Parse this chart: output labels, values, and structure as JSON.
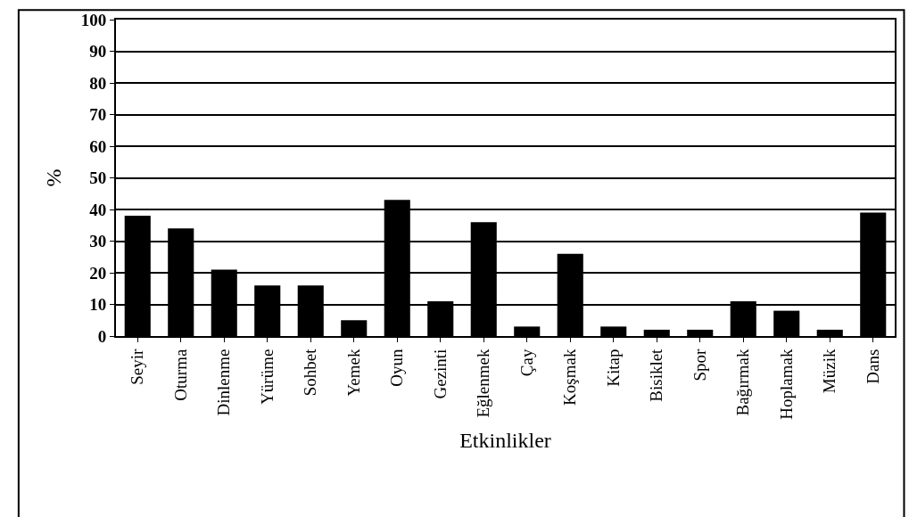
{
  "chart_data": {
    "type": "bar",
    "xlabel": "Etkinlikler",
    "ylabel": "%",
    "categories": [
      "Seyir",
      "Oturma",
      "Dinlenme",
      "Yürüme",
      "Sohbet",
      "Yemek",
      "Oyun",
      "Gezinti",
      "Eğlenmek",
      "Çay",
      "Koşmak",
      "Kitap",
      "Bisiklet",
      "Spor",
      "Bağırmak",
      "Hoplamak",
      "Müzik",
      "Dans"
    ],
    "values": [
      38,
      34,
      21,
      16,
      16,
      5,
      43,
      11,
      36,
      3,
      26,
      3,
      2,
      2,
      11,
      8,
      2,
      39
    ],
    "color": "#000000",
    "ylim": [
      0,
      100
    ],
    "yticks": [
      0,
      10,
      20,
      30,
      40,
      50,
      60,
      70,
      80,
      90,
      100
    ],
    "grid": "y"
  }
}
